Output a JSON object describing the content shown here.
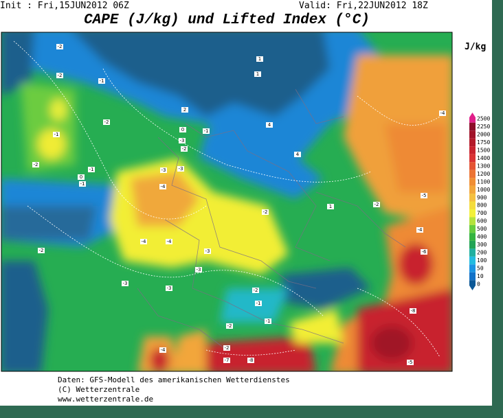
{
  "header": {
    "init": "Init : Fri,15JUN2012 06Z",
    "valid": "Valid: Fri,22JUN2012 18Z",
    "title": "CAPE (J/kg) und Lifted Index (°C)",
    "unit": "J/kg"
  },
  "colorbar": {
    "levels": [
      {
        "value": 2500,
        "color": "#e0208a"
      },
      {
        "value": 2250,
        "color": "#8c0c28"
      },
      {
        "value": 2000,
        "color": "#a01228"
      },
      {
        "value": 1750,
        "color": "#b41a2a"
      },
      {
        "value": 1500,
        "color": "#c8222e"
      },
      {
        "value": 1400,
        "color": "#da3234"
      },
      {
        "value": 1300,
        "color": "#e45434"
      },
      {
        "value": 1200,
        "color": "#ec7434"
      },
      {
        "value": 1100,
        "color": "#f08e34"
      },
      {
        "value": 1000,
        "color": "#f2a63a"
      },
      {
        "value": 900,
        "color": "#f4c040"
      },
      {
        "value": 800,
        "color": "#f4dc3c"
      },
      {
        "value": 700,
        "color": "#f2f03a"
      },
      {
        "value": 600,
        "color": "#b4e23c"
      },
      {
        "value": 500,
        "color": "#66cc3e"
      },
      {
        "value": 400,
        "color": "#34b440"
      },
      {
        "value": 300,
        "color": "#22a456"
      },
      {
        "value": 200,
        "color": "#20b0a0"
      },
      {
        "value": 100,
        "color": "#22bce0"
      },
      {
        "value": 50,
        "color": "#1a94e2"
      },
      {
        "value": 10,
        "color": "#1272c8"
      },
      {
        "value": 0,
        "color": "#0c5896"
      }
    ]
  },
  "map": {
    "contour_labels": [
      "-2",
      "-2",
      "-1",
      "-1",
      "-2",
      "-1",
      "-1",
      "0",
      "-2",
      "-2",
      "-3",
      "-4",
      "-3",
      "-4",
      "-3",
      "-3",
      "-4",
      "-2",
      "-3",
      "-2",
      "-1",
      "-1",
      "-2",
      "-2",
      "-4",
      "-3",
      "-5",
      "-4",
      "-6",
      "-8",
      "-5",
      "-7",
      "-8",
      "-3",
      "-2",
      "-1",
      "0",
      "1",
      "2",
      "1",
      "4",
      "4",
      "1",
      "-2",
      "-4"
    ]
  },
  "footer": {
    "line1": "Daten: GFS-Modell des amerikanischen Wetterdienstes",
    "line2": "(C) Wetterzentrale",
    "line3": "www.wetterzentrale.de"
  }
}
